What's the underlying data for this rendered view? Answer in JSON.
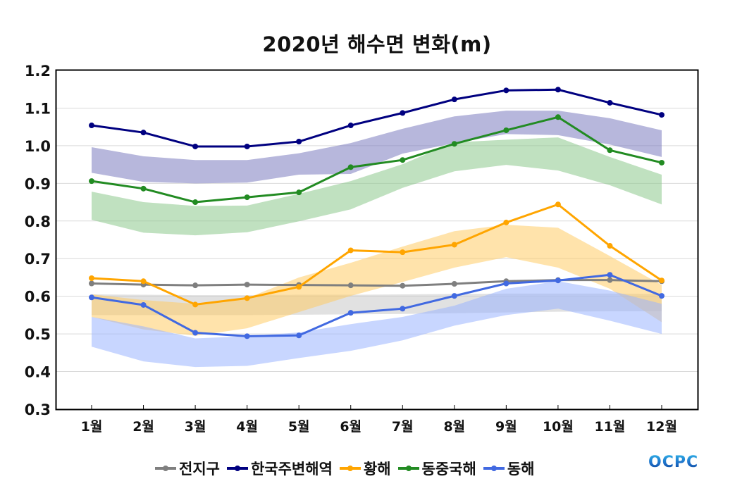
{
  "chart_data": {
    "type": "line",
    "title": "2020년 해수면 변화(m)",
    "xlabel": "",
    "ylabel": "",
    "ylim": [
      0.3,
      1.2
    ],
    "yticks": [
      "0.3",
      "0.4",
      "0.5",
      "0.6",
      "0.7",
      "0.8",
      "0.9",
      "1.0",
      "1.1",
      "1.2"
    ],
    "grid": true,
    "legend_position": "bottom",
    "categories": [
      "1월",
      "2월",
      "3월",
      "4월",
      "5월",
      "6월",
      "7월",
      "8월",
      "9월",
      "10월",
      "11월",
      "12월"
    ],
    "series": [
      {
        "name": "전지구",
        "color": "#7f7f7f",
        "values": [
          0.634,
          0.631,
          0.629,
          0.631,
          0.63,
          0.629,
          0.628,
          0.633,
          0.64,
          0.643,
          0.643,
          0.64
        ],
        "band": {
          "color": "#c8c8c8",
          "upper": [
            0.605,
            0.604,
            0.603,
            0.603,
            0.604,
            0.604,
            0.605,
            0.606,
            0.607,
            0.607,
            0.607,
            0.606
          ],
          "lower": [
            0.55,
            0.55,
            0.55,
            0.55,
            0.551,
            0.552,
            0.553,
            0.555,
            0.557,
            0.559,
            0.56,
            0.56
          ]
        }
      },
      {
        "name": "한국주변해역",
        "color": "#000080",
        "values": [
          1.054,
          1.035,
          0.998,
          0.998,
          1.011,
          1.054,
          1.087,
          1.123,
          1.147,
          1.149,
          1.114,
          1.082
        ],
        "band": {
          "color": "#7b7bc0",
          "upper": [
            0.996,
            0.972,
            0.962,
            0.962,
            0.98,
            1.007,
            1.045,
            1.078,
            1.093,
            1.093,
            1.073,
            1.041
          ],
          "lower": [
            0.928,
            0.904,
            0.9,
            0.902,
            0.923,
            0.925,
            0.979,
            1.007,
            1.031,
            1.028,
            1.003,
            0.97
          ]
        }
      },
      {
        "name": "황해",
        "color": "#ffa500",
        "values": [
          0.648,
          0.64,
          0.578,
          0.595,
          0.625,
          0.722,
          0.717,
          0.737,
          0.796,
          0.844,
          0.734,
          0.642
        ],
        "band": {
          "color": "#ffcc66",
          "upper": [
            0.605,
            0.59,
            0.58,
            0.595,
            0.65,
            0.689,
            0.732,
            0.773,
            0.79,
            0.782,
            0.707,
            0.63
          ],
          "lower": [
            0.545,
            0.512,
            0.495,
            0.515,
            0.558,
            0.601,
            0.638,
            0.676,
            0.704,
            0.676,
            0.62,
            0.531
          ]
        }
      },
      {
        "name": "동중국해",
        "color": "#228b22",
        "values": [
          0.906,
          0.886,
          0.85,
          0.863,
          0.876,
          0.943,
          0.962,
          1.005,
          1.041,
          1.076,
          0.988,
          0.955
        ],
        "band": {
          "color": "#8cc98c",
          "upper": [
            0.878,
            0.85,
            0.84,
            0.841,
            0.872,
            0.906,
            0.951,
            1.009,
            1.016,
            1.022,
            0.97,
            0.923
          ],
          "lower": [
            0.803,
            0.769,
            0.762,
            0.77,
            0.799,
            0.831,
            0.888,
            0.932,
            0.949,
            0.934,
            0.895,
            0.844
          ]
        }
      },
      {
        "name": "동해",
        "color": "#4169e1",
        "values": [
          0.597,
          0.577,
          0.503,
          0.494,
          0.496,
          0.556,
          0.567,
          0.601,
          0.634,
          0.642,
          0.657,
          0.601
        ],
        "band": {
          "color": "#9bb4ff",
          "upper": [
            0.545,
            0.52,
            0.488,
            0.494,
            0.504,
            0.526,
            0.545,
            0.575,
            0.62,
            0.64,
            0.615,
            0.58
          ],
          "lower": [
            0.466,
            0.427,
            0.412,
            0.415,
            0.436,
            0.455,
            0.483,
            0.522,
            0.55,
            0.567,
            0.535,
            0.5
          ]
        }
      }
    ]
  },
  "logo": {
    "text": "OCPC"
  }
}
